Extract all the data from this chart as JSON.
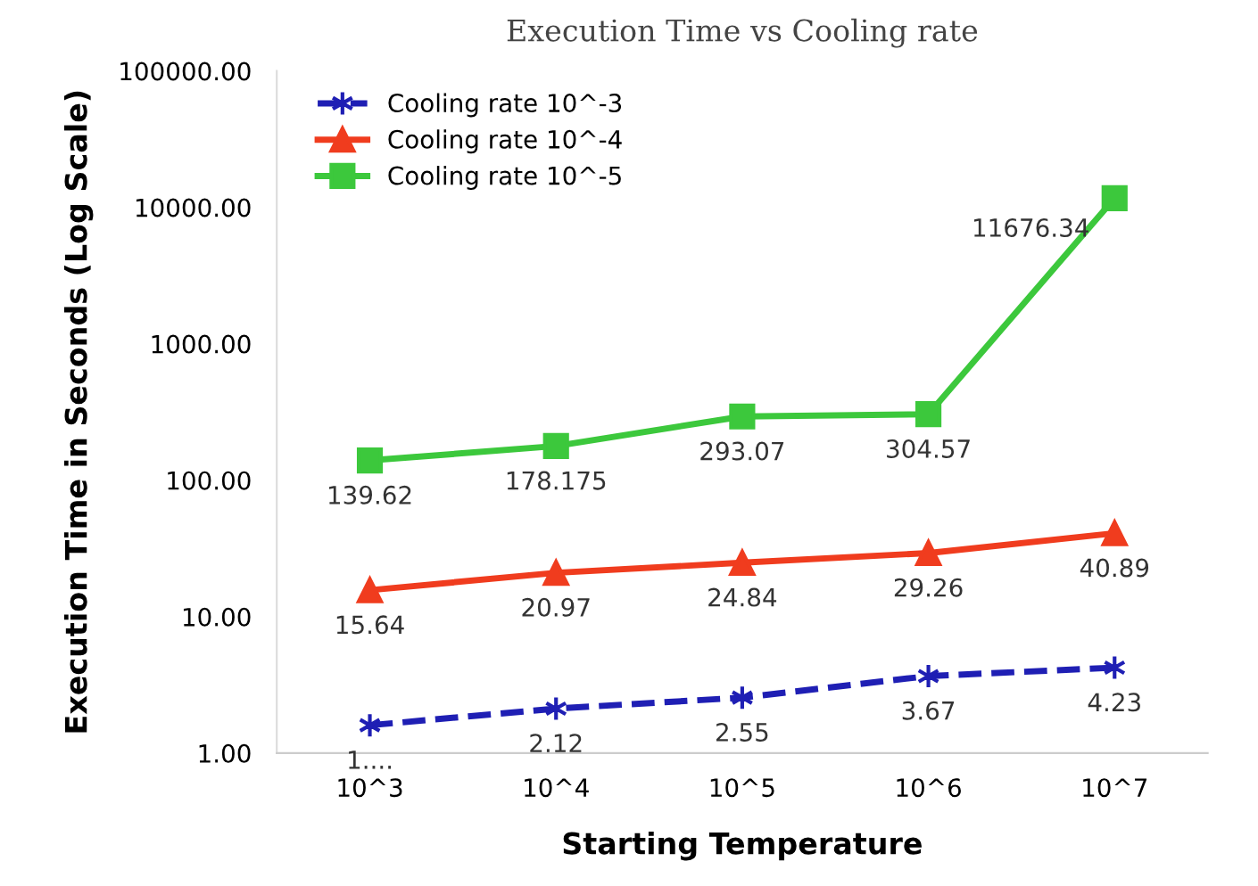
{
  "chart_data": {
    "type": "line",
    "title": "Execution Time vs Cooling rate",
    "xlabel": "Starting Temperature",
    "ylabel": "Execution Time in Seconds (Log Scale)",
    "categories": [
      "10^3",
      "10^4",
      "10^5",
      "10^6",
      "10^7"
    ],
    "series": [
      {
        "name": "Cooling rate 10^-3",
        "color": "#1f1fb4",
        "marker": "cross",
        "line_style": "dashed",
        "values": [
          1.6,
          2.12,
          2.55,
          3.67,
          4.23
        ],
        "value_labels": [
          "1....",
          "2.12",
          "2.55",
          "3.67",
          "4.23"
        ]
      },
      {
        "name": "Cooling rate 10^-4",
        "color": "#f03c1e",
        "marker": "triangle",
        "line_style": "solid",
        "values": [
          15.64,
          20.97,
          24.84,
          29.26,
          40.89
        ],
        "value_labels": [
          "15.64",
          "20.97",
          "24.84",
          "29.26",
          "40.89"
        ]
      },
      {
        "name": "Cooling rate 10^-5",
        "color": "#3cc83c",
        "marker": "square",
        "line_style": "solid",
        "values": [
          139.62,
          178.175,
          293.07,
          304.57,
          11676.34
        ],
        "value_labels": [
          "139.62",
          "178.175",
          "293.07",
          "304.57",
          "11676.34"
        ]
      }
    ],
    "log": true,
    "ylim": [
      1,
      100000
    ],
    "yticks": [
      {
        "value": 1,
        "label": "1.00"
      },
      {
        "value": 10,
        "label": "10.00"
      },
      {
        "value": 100,
        "label": "100.00"
      },
      {
        "value": 1000,
        "label": "1000.00"
      },
      {
        "value": 10000,
        "label": "10000.00"
      },
      {
        "value": 100000,
        "label": "100000.00"
      }
    ],
    "grid": false,
    "legend": "top left"
  }
}
